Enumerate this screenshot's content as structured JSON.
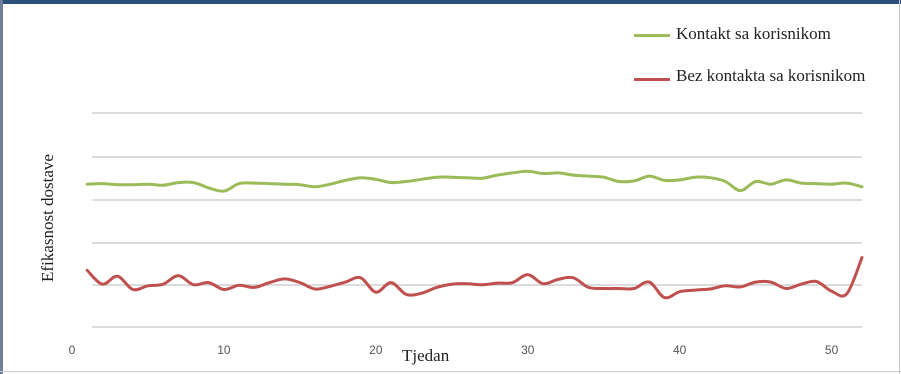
{
  "chart_data": {
    "type": "line",
    "xlabel": "Tjedan",
    "ylabel": "Efikasnost dostave",
    "xlim": [
      0,
      52
    ],
    "x_ticks": [
      "0",
      "10",
      "20",
      "30",
      "40",
      "50"
    ],
    "grid": true,
    "legend_position": "top-right",
    "series": [
      {
        "name": "Kontakt sa korisnikom",
        "color": "#9bbb59",
        "x": [
          1,
          2,
          3,
          4,
          5,
          6,
          7,
          8,
          9,
          10,
          11,
          12,
          13,
          14,
          15,
          16,
          17,
          18,
          19,
          20,
          21,
          22,
          23,
          24,
          25,
          26,
          27,
          28,
          29,
          30,
          31,
          32,
          33,
          34,
          35,
          36,
          37,
          38,
          39,
          40,
          41,
          42,
          43,
          44,
          45,
          46,
          47,
          48,
          49,
          50,
          51,
          52
        ],
        "values": [
          3.17,
          3.18,
          3.16,
          3.16,
          3.17,
          3.15,
          3.2,
          3.2,
          3.1,
          3.04,
          3.18,
          3.19,
          3.18,
          3.17,
          3.16,
          3.12,
          3.17,
          3.24,
          3.29,
          3.26,
          3.2,
          3.22,
          3.26,
          3.3,
          3.3,
          3.29,
          3.28,
          3.34,
          3.38,
          3.41,
          3.37,
          3.38,
          3.34,
          3.32,
          3.3,
          3.22,
          3.23,
          3.32,
          3.24,
          3.25,
          3.3,
          3.29,
          3.22,
          3.05,
          3.22,
          3.17,
          3.25,
          3.19,
          3.18,
          3.17,
          3.19,
          3.12
        ]
      },
      {
        "name": "Bez kontakta sa korisnikom",
        "color": "#c0504d",
        "x": [
          1,
          2,
          3,
          4,
          5,
          6,
          7,
          8,
          9,
          10,
          11,
          12,
          13,
          14,
          15,
          16,
          17,
          18,
          19,
          20,
          21,
          22,
          23,
          24,
          25,
          26,
          27,
          28,
          29,
          30,
          31,
          32,
          33,
          34,
          35,
          36,
          37,
          38,
          39,
          40,
          41,
          42,
          43,
          44,
          45,
          46,
          47,
          48,
          49,
          50,
          51,
          52
        ],
        "values": [
          1.56,
          1.3,
          1.45,
          1.2,
          1.27,
          1.3,
          1.46,
          1.29,
          1.33,
          1.2,
          1.28,
          1.24,
          1.33,
          1.4,
          1.33,
          1.21,
          1.26,
          1.34,
          1.42,
          1.15,
          1.33,
          1.11,
          1.13,
          1.24,
          1.3,
          1.31,
          1.29,
          1.32,
          1.33,
          1.48,
          1.31,
          1.39,
          1.42,
          1.24,
          1.22,
          1.22,
          1.22,
          1.34,
          1.05,
          1.16,
          1.19,
          1.21,
          1.27,
          1.25,
          1.34,
          1.34,
          1.22,
          1.3,
          1.35,
          1.17,
          1.12,
          1.8
        ]
      }
    ]
  }
}
